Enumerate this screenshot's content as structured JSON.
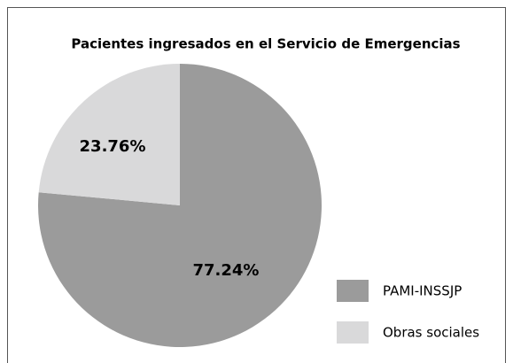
{
  "chart_data": {
    "type": "pie",
    "title": "Pacientes ingresados en el Servicio de Emergencias",
    "categories": [
      "PAMI-INSSJP",
      "Obras sociales"
    ],
    "values": [
      77.24,
      23.76
    ],
    "value_labels": [
      "77.24%",
      "23.76%"
    ],
    "colors": [
      "#9b9b9b",
      "#d9d9da"
    ],
    "legend": "bottom-right"
  }
}
